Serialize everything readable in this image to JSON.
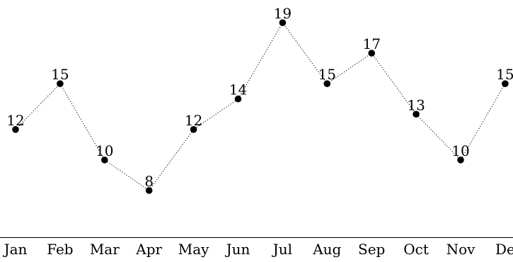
{
  "chart_data": {
    "type": "line",
    "categories": [
      "Jan",
      "Feb",
      "Mar",
      "Apr",
      "May",
      "Jun",
      "Jul",
      "Aug",
      "Sep",
      "Oct",
      "Nov",
      "De"
    ],
    "series": [
      {
        "values": [
          12,
          15,
          10,
          8,
          12,
          14,
          19,
          15,
          17,
          13,
          10,
          15
        ]
      }
    ],
    "title": "",
    "xlabel": "",
    "ylabel": "",
    "ylim": [
      4,
      20
    ],
    "line_style": "dotted",
    "marker": "filled-circle",
    "data_labels": true,
    "grid": false,
    "y_axis_visible": false,
    "colors": {
      "line": "#000000",
      "marker": "#000000",
      "axis": "#000000",
      "text": "#000000"
    }
  }
}
